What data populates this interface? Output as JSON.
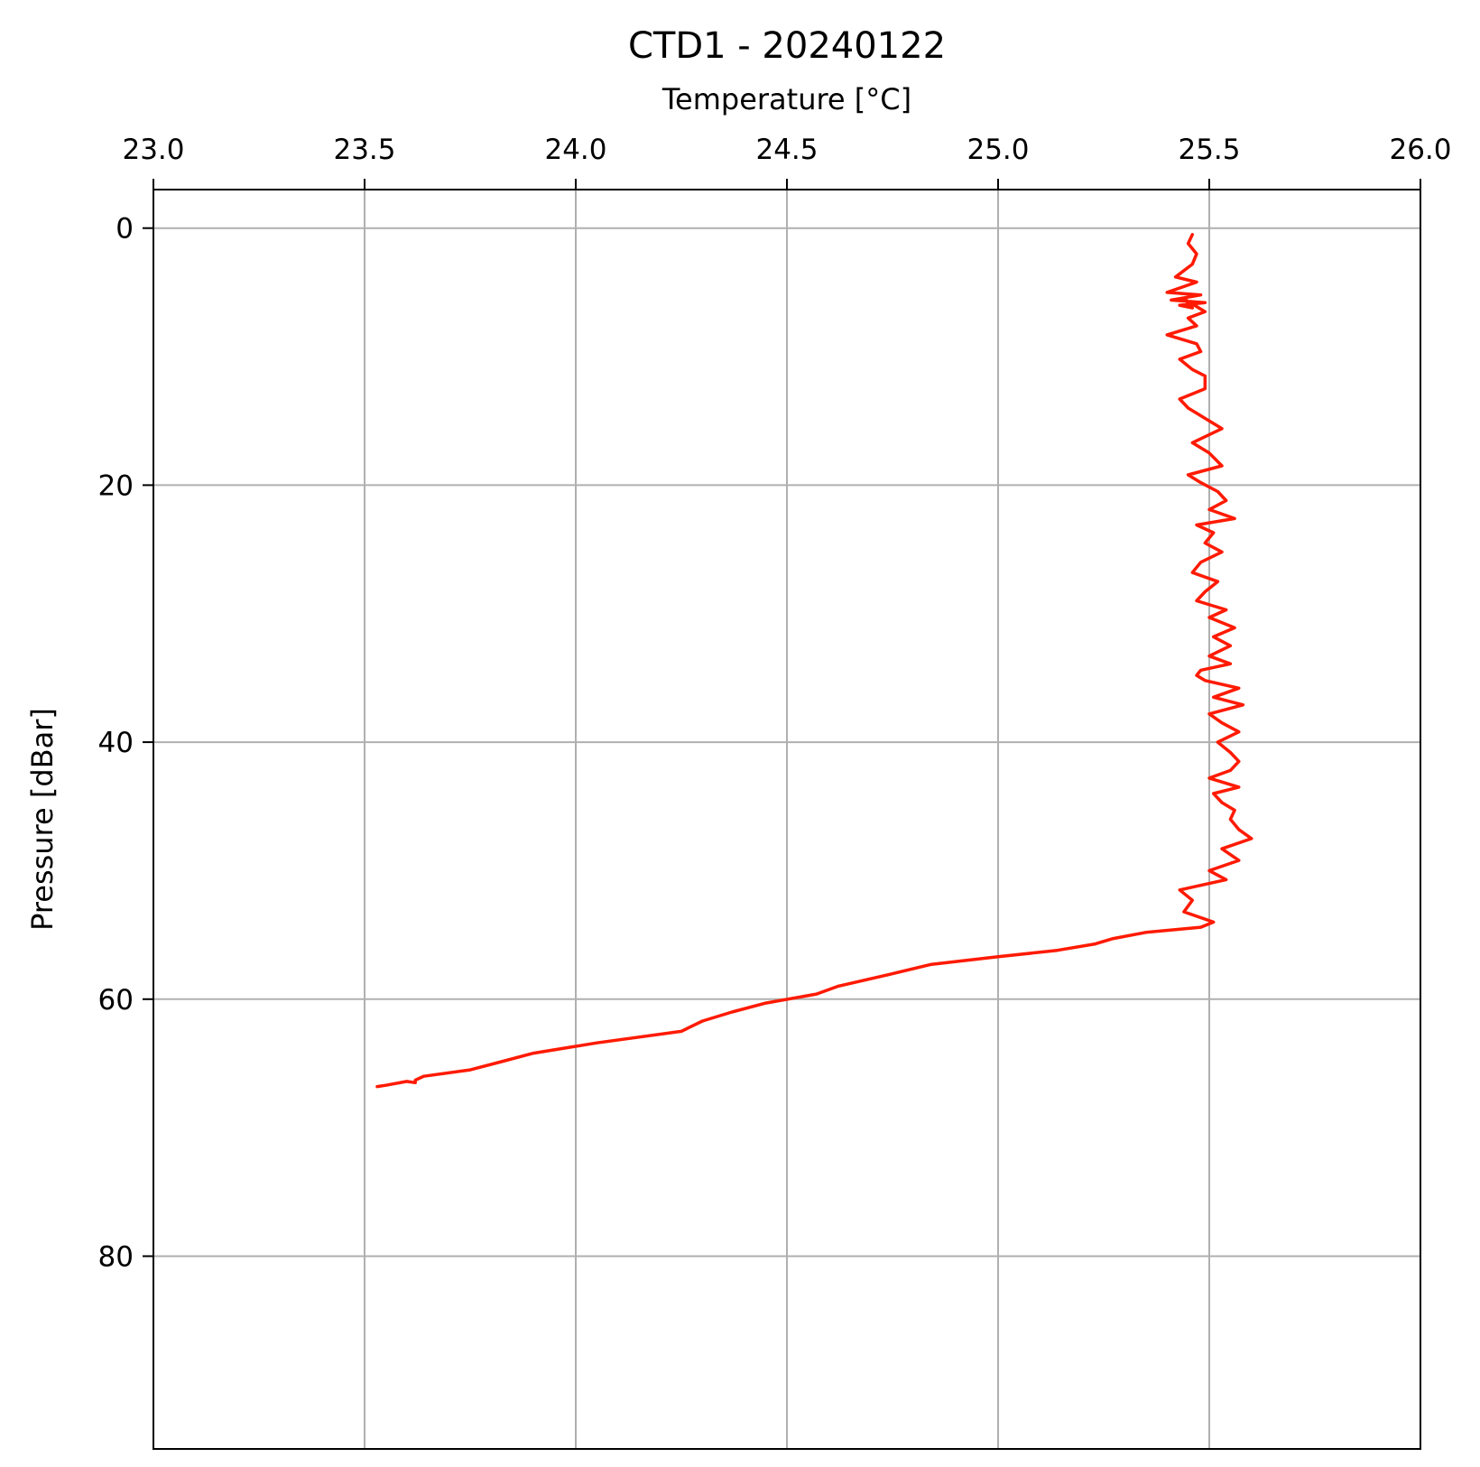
{
  "chart_data": {
    "type": "line",
    "title": "CTD1 - 20240122",
    "xlabel": "Temperature [°C]",
    "ylabel": "Pressure [dBar]",
    "xlim": [
      23.0,
      26.0
    ],
    "ylim": [
      95,
      -3
    ],
    "y_inverted": true,
    "x_axis_position": "top",
    "grid": true,
    "colors": {
      "series": "#ff1a00",
      "grid": "#b0b0b0",
      "frame": "#000000"
    },
    "x_ticks": [
      {
        "value": 23.0,
        "label": "23.0"
      },
      {
        "value": 23.5,
        "label": "23.5"
      },
      {
        "value": 24.0,
        "label": "24.0"
      },
      {
        "value": 24.5,
        "label": "24.5"
      },
      {
        "value": 25.0,
        "label": "25.0"
      },
      {
        "value": 25.5,
        "label": "25.5"
      },
      {
        "value": 26.0,
        "label": "26.0"
      }
    ],
    "y_ticks": [
      {
        "value": 0,
        "label": "0"
      },
      {
        "value": 20,
        "label": "20"
      },
      {
        "value": 40,
        "label": "40"
      },
      {
        "value": 60,
        "label": "60"
      },
      {
        "value": 80,
        "label": "80"
      }
    ],
    "series": [
      {
        "color": "#ff1a00",
        "x": [
          25.46,
          25.45,
          25.47,
          25.46,
          25.42,
          25.47,
          25.4,
          25.48,
          25.41,
          25.49,
          25.43,
          25.46,
          25.44,
          25.49,
          25.45,
          25.47,
          25.4,
          25.47,
          25.48,
          25.43,
          25.46,
          25.49,
          25.49,
          25.43,
          25.45,
          25.49,
          25.53,
          25.46,
          25.5,
          25.53,
          25.45,
          25.48,
          25.52,
          25.54,
          25.5,
          25.56,
          25.47,
          25.51,
          25.49,
          25.53,
          25.48,
          25.46,
          25.52,
          25.49,
          25.47,
          25.54,
          25.5,
          25.56,
          25.51,
          25.55,
          25.5,
          25.55,
          25.48,
          25.47,
          25.49,
          25.57,
          25.51,
          25.58,
          25.5,
          25.53,
          25.57,
          25.52,
          25.55,
          25.57,
          25.55,
          25.5,
          25.57,
          25.51,
          25.53,
          25.56,
          25.55,
          25.57,
          25.6,
          25.53,
          25.57,
          25.5,
          25.54,
          25.43,
          25.46,
          25.44,
          25.51,
          25.48,
          25.35,
          25.27,
          25.23,
          25.14,
          25.0,
          24.84,
          24.74,
          24.62,
          24.57,
          24.45,
          24.37,
          24.3,
          24.25,
          24.05,
          23.9,
          23.82,
          23.75,
          23.64,
          23.62,
          23.62,
          23.6,
          23.55,
          23.53
        ],
        "y": [
          0.5,
          1.2,
          2.0,
          2.8,
          3.8,
          4.2,
          5.0,
          5.2,
          5.6,
          5.8,
          6.0,
          6.2,
          5.5,
          6.5,
          7.0,
          7.6,
          8.3,
          9.0,
          9.6,
          10.2,
          11.0,
          11.5,
          12.5,
          13.3,
          14.0,
          14.8,
          15.6,
          16.7,
          17.5,
          18.5,
          19.2,
          19.8,
          20.5,
          21.2,
          21.9,
          22.6,
          23.1,
          23.7,
          24.5,
          25.2,
          26.0,
          26.8,
          27.5,
          28.3,
          29.0,
          29.7,
          30.3,
          31.1,
          31.8,
          32.5,
          33.3,
          33.9,
          34.4,
          34.8,
          35.2,
          35.8,
          36.5,
          37.1,
          37.8,
          38.5,
          39.2,
          40.0,
          40.8,
          41.5,
          42.2,
          42.8,
          43.5,
          44.0,
          44.7,
          45.3,
          46.0,
          46.8,
          47.5,
          48.3,
          49.2,
          50.0,
          50.7,
          51.5,
          52.3,
          53.2,
          54.0,
          54.4,
          54.8,
          55.3,
          55.7,
          56.2,
          56.7,
          57.3,
          58.1,
          59.0,
          59.6,
          60.3,
          61.0,
          61.7,
          62.5,
          63.4,
          64.2,
          64.9,
          65.5,
          66.0,
          66.3,
          66.5,
          66.4,
          66.7,
          66.8
        ]
      }
    ]
  }
}
